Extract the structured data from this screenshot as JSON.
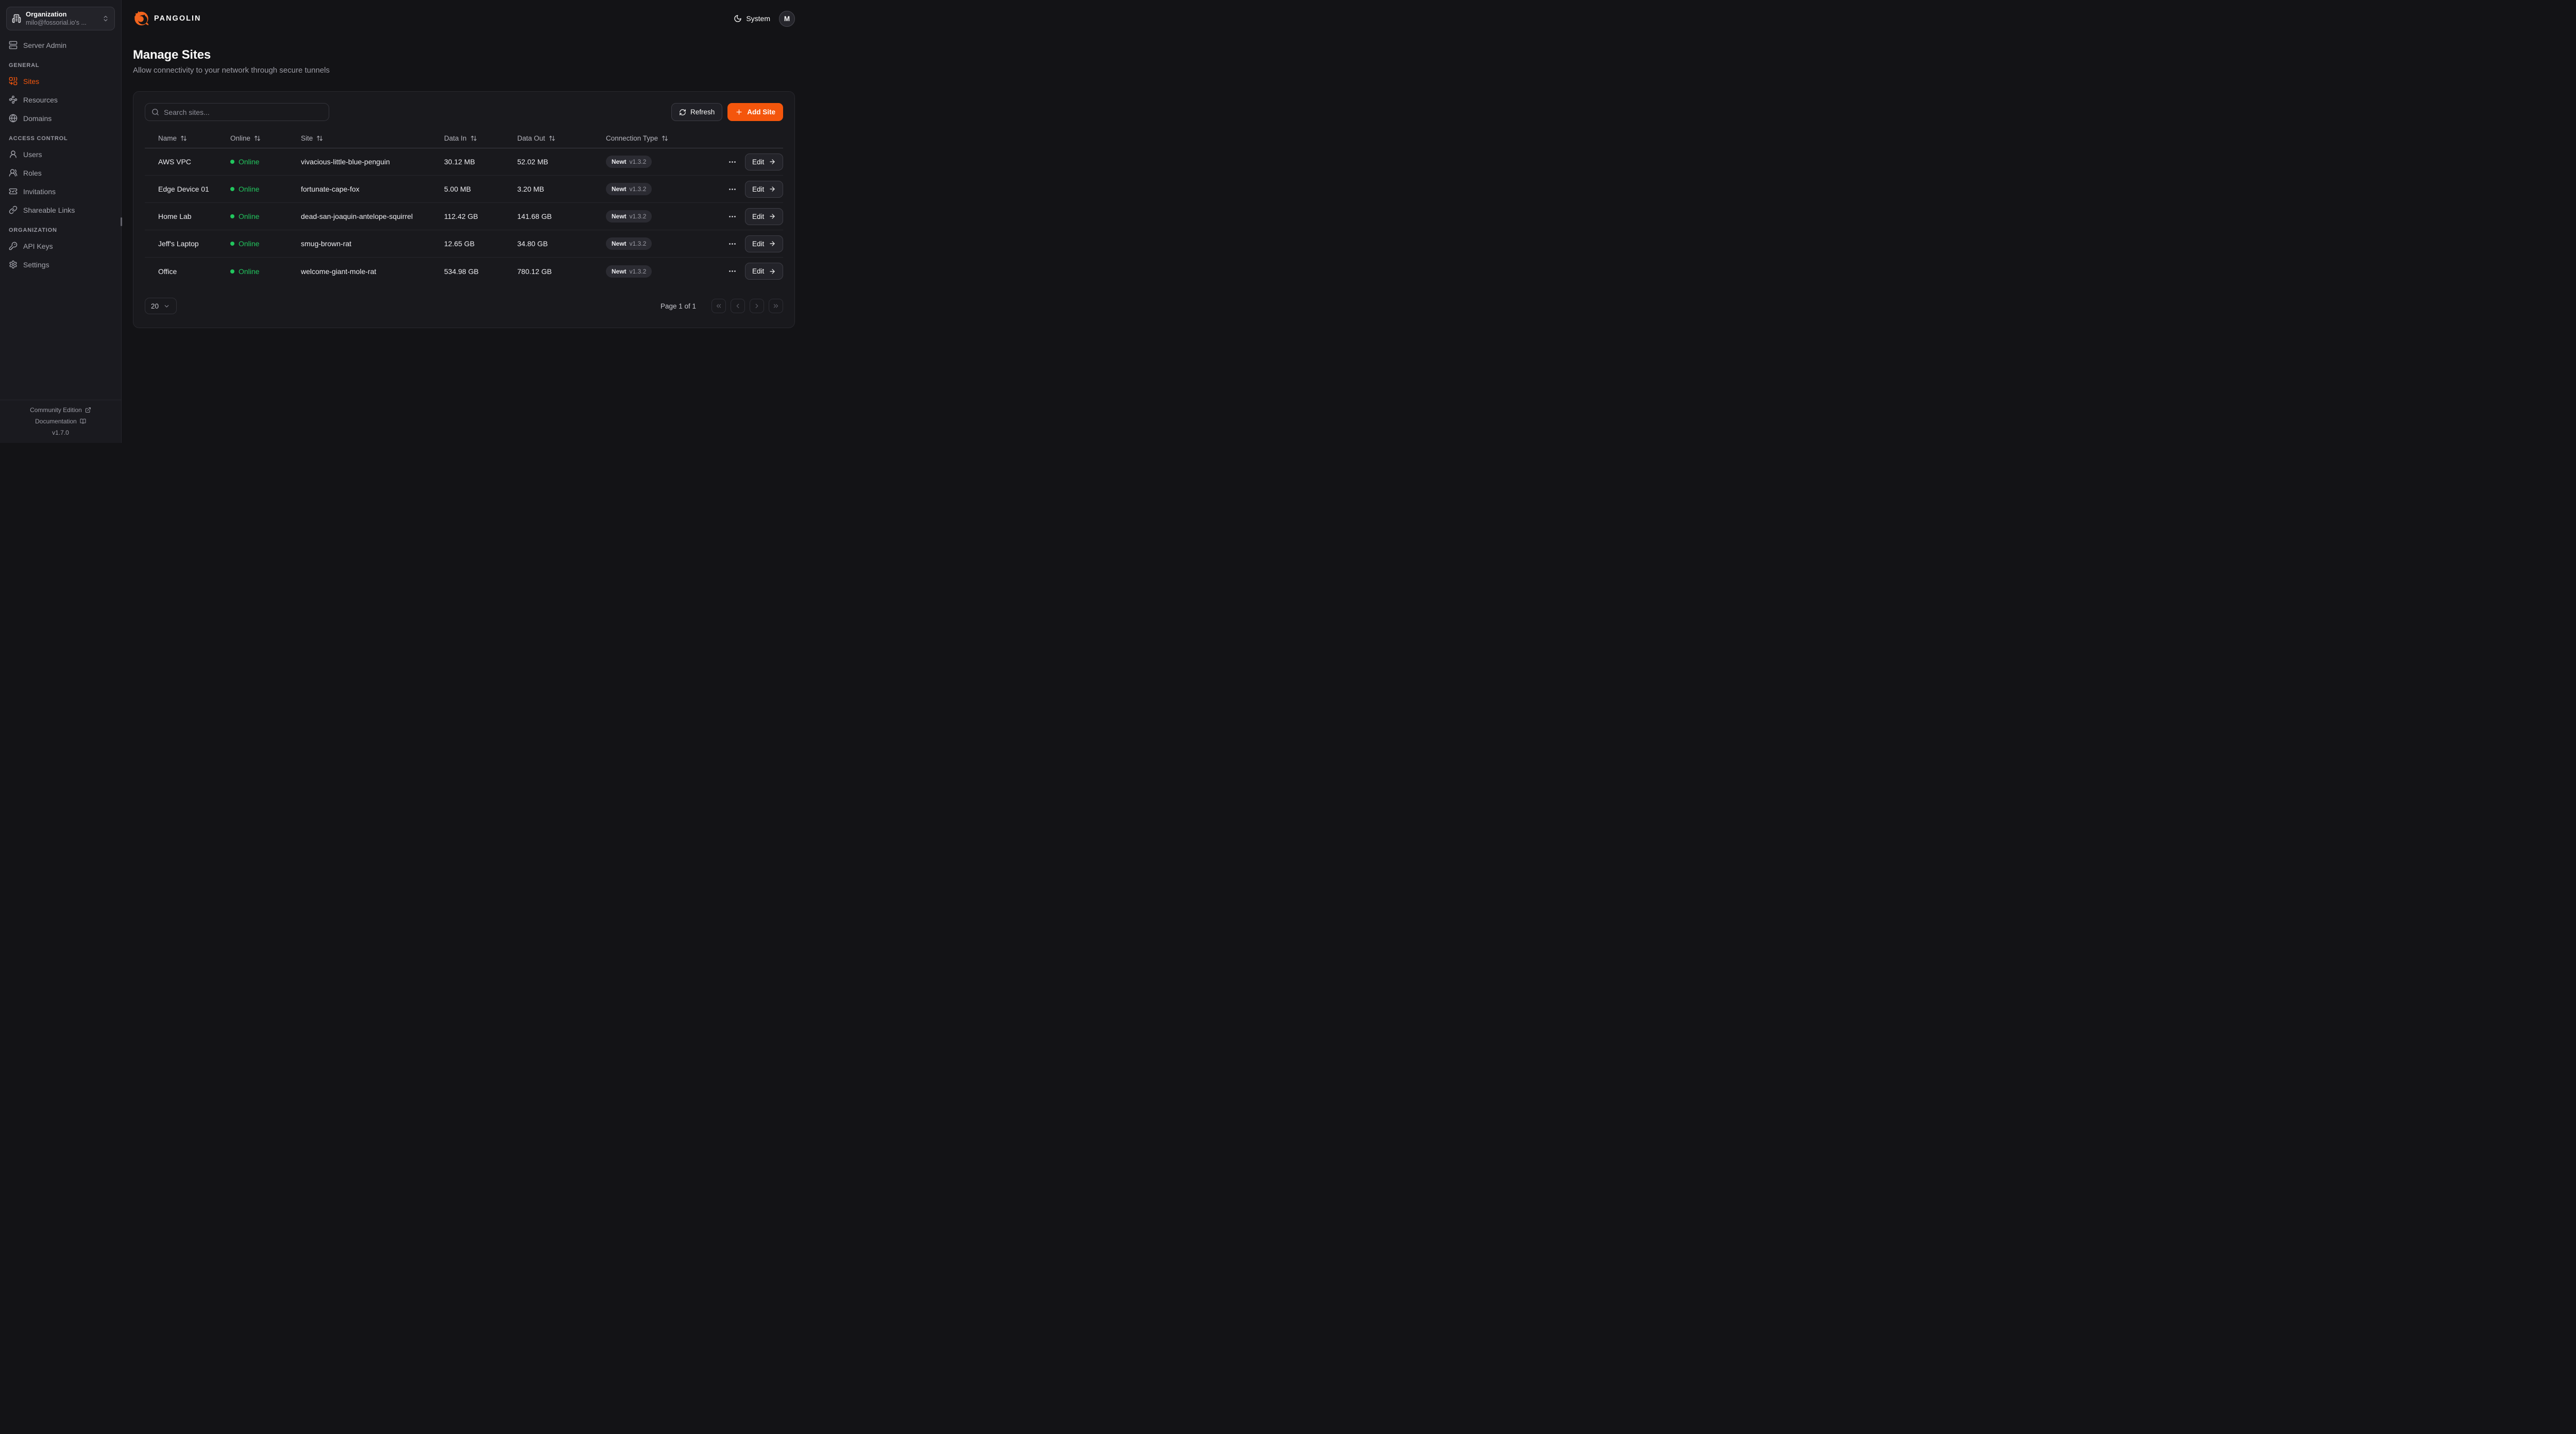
{
  "colors": {
    "accent": "#f4560c",
    "logo": "#f2641e",
    "online": "#22c55e"
  },
  "brand": {
    "name": "PANGOLIN"
  },
  "org_switcher": {
    "label": "Organization",
    "value": "milo@fossorial.io's ...",
    "icon": "building-icon",
    "chevron_icon": "chevrons-up-down-icon"
  },
  "sidebar": {
    "top_items": [
      {
        "label": "Server Admin",
        "icon": "server-icon",
        "active": false
      }
    ],
    "sections": [
      {
        "title": "GENERAL",
        "items": [
          {
            "label": "Sites",
            "icon": "sites-icon",
            "active": true
          },
          {
            "label": "Resources",
            "icon": "waypoints-icon",
            "active": false
          },
          {
            "label": "Domains",
            "icon": "globe-icon",
            "active": false
          }
        ]
      },
      {
        "title": "ACCESS CONTROL",
        "items": [
          {
            "label": "Users",
            "icon": "user-icon",
            "active": false
          },
          {
            "label": "Roles",
            "icon": "users-icon",
            "active": false
          },
          {
            "label": "Invitations",
            "icon": "ticket-check-icon",
            "active": false
          },
          {
            "label": "Shareable Links",
            "icon": "link-icon",
            "active": false
          }
        ]
      },
      {
        "title": "ORGANIZATION",
        "items": [
          {
            "label": "API Keys",
            "icon": "key-icon",
            "active": false
          },
          {
            "label": "Settings",
            "icon": "gear-icon",
            "active": false
          }
        ]
      }
    ],
    "footer": {
      "community_label": "Community Edition",
      "documentation_label": "Documentation",
      "version": "v1.7.0"
    }
  },
  "header": {
    "theme_label": "System",
    "avatar_initial": "M"
  },
  "page": {
    "title": "Manage Sites",
    "subtitle": "Allow connectivity to your network through secure tunnels"
  },
  "toolbar": {
    "search_placeholder": "Search sites...",
    "refresh_label": "Refresh",
    "add_site_label": "Add Site"
  },
  "table": {
    "columns": [
      "Name",
      "Online",
      "Site",
      "Data In",
      "Data Out",
      "Connection Type"
    ],
    "edit_label": "Edit",
    "rows": [
      {
        "name": "AWS VPC",
        "status": "Online",
        "site": "vivacious-little-blue-penguin",
        "data_in": "30.12 MB",
        "data_out": "52.02 MB",
        "connection_type": "Newt",
        "connection_version": "v1.3.2"
      },
      {
        "name": "Edge Device 01",
        "status": "Online",
        "site": "fortunate-cape-fox",
        "data_in": "5.00 MB",
        "data_out": "3.20 MB",
        "connection_type": "Newt",
        "connection_version": "v1.3.2"
      },
      {
        "name": "Home Lab",
        "status": "Online",
        "site": "dead-san-joaquin-antelope-squirrel",
        "data_in": "112.42 GB",
        "data_out": "141.68 GB",
        "connection_type": "Newt",
        "connection_version": "v1.3.2"
      },
      {
        "name": "Jeff's Laptop",
        "status": "Online",
        "site": "smug-brown-rat",
        "data_in": "12.65 GB",
        "data_out": "34.80 GB",
        "connection_type": "Newt",
        "connection_version": "v1.3.2"
      },
      {
        "name": "Office",
        "status": "Online",
        "site": "welcome-giant-mole-rat",
        "data_in": "534.98 GB",
        "data_out": "780.12 GB",
        "connection_type": "Newt",
        "connection_version": "v1.3.2"
      }
    ]
  },
  "pagination": {
    "page_size": "20",
    "page_text": "Page 1 of 1"
  }
}
